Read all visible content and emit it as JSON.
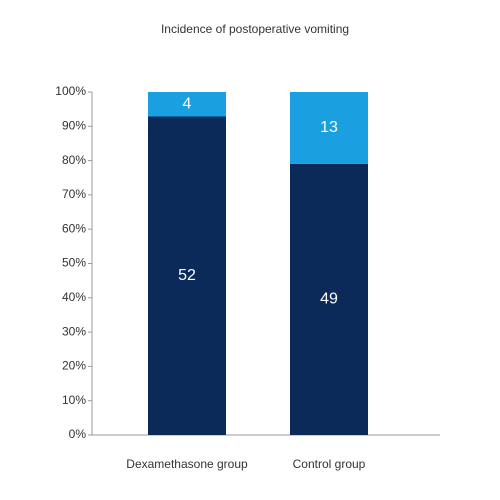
{
  "chart_data": {
    "type": "bar",
    "stacked": "percent",
    "title": "Incidence of postoperative vomiting",
    "categories": [
      "Dexamethasone group",
      "Control group"
    ],
    "series": [
      {
        "color": "#0b2a5a",
        "values": [
          52,
          49
        ]
      },
      {
        "color": "#1a9fe0",
        "values": [
          4,
          13
        ]
      }
    ],
    "ylim": [
      0,
      100
    ],
    "yticks": [
      {
        "value": 0,
        "label": "0%"
      },
      {
        "value": 10,
        "label": "10%"
      },
      {
        "value": 20,
        "label": "20%"
      },
      {
        "value": 30,
        "label": "30%"
      },
      {
        "value": 40,
        "label": "40%"
      },
      {
        "value": 50,
        "label": "50%"
      },
      {
        "value": 60,
        "label": "60%"
      },
      {
        "value": 70,
        "label": "70%"
      },
      {
        "value": 80,
        "label": "80%"
      },
      {
        "value": 90,
        "label": "90%"
      },
      {
        "value": 100,
        "label": "100%"
      }
    ]
  }
}
